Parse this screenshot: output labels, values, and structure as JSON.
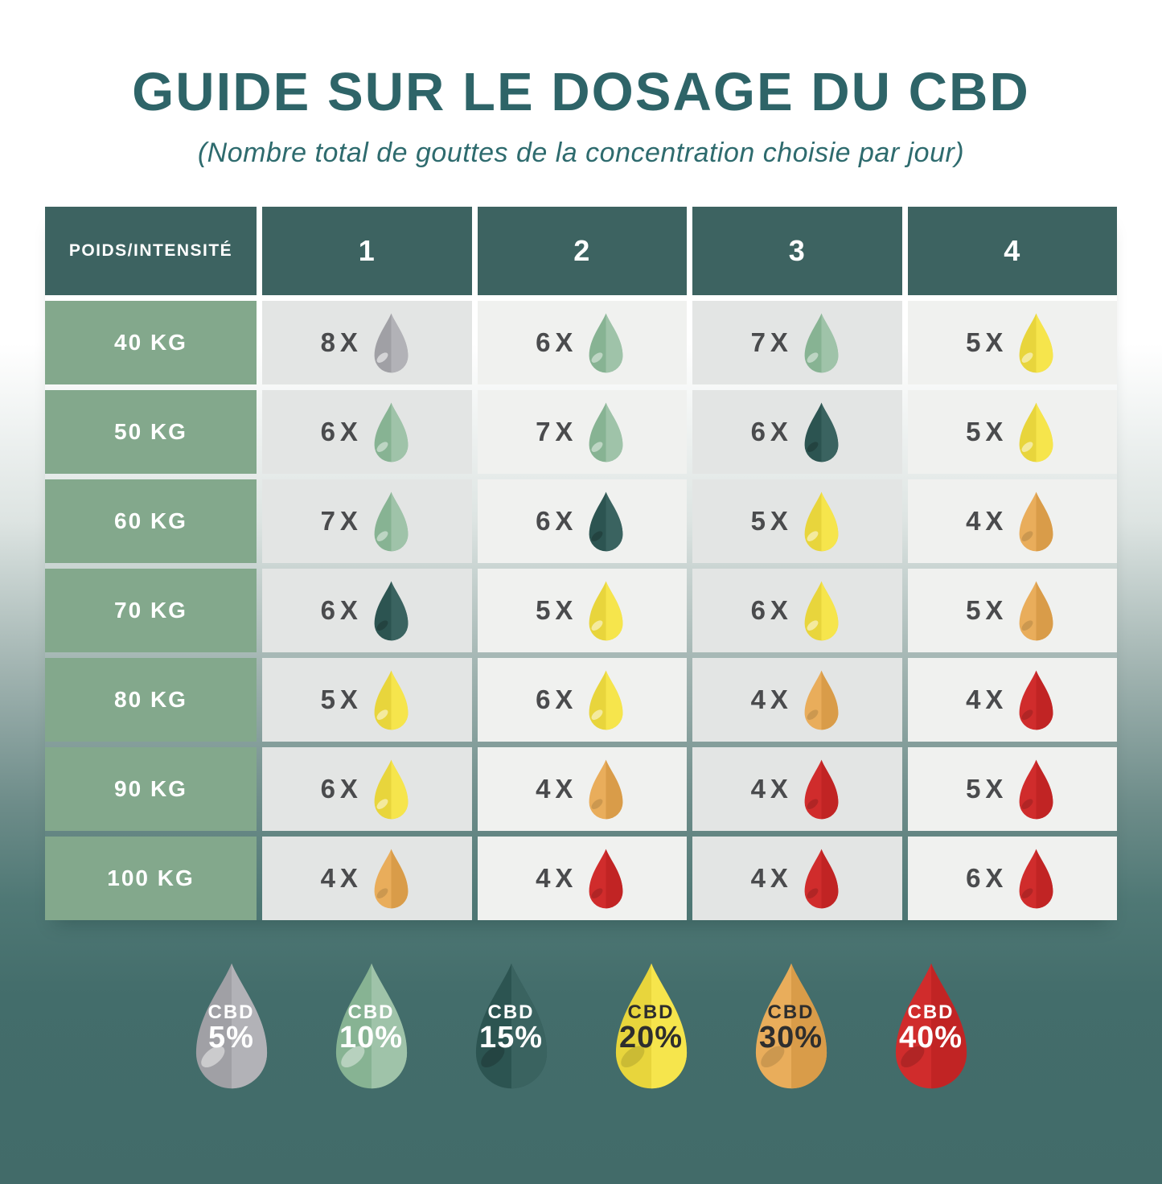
{
  "page": {
    "title": "GUIDE SUR LE DOSAGE DU CBD",
    "subtitle": "(Nombre total de gouttes de la concentration choisie par jour)"
  },
  "colors": {
    "title_text": "#2e6468",
    "subtitle_text": "#2e6b6e",
    "header_bg": "#3d6361",
    "header_text": "#ffffff",
    "row_label_bg": "#83a88c",
    "row_label_text": "#ffffff",
    "cell_bg_odd": "#e3e5e4",
    "cell_bg_even": "#f0f1ef",
    "count_text": "#4a4b4d",
    "bg_top": "#ffffff",
    "bg_bottom": "#426b69"
  },
  "concentrations": {
    "cbd5": {
      "name": "CBD 5%",
      "label_top": "CBD",
      "label_pct": "5%",
      "left": "#a0a0a5",
      "right": "#b2b2b7",
      "sheen_sm": "rgba(255,255,255,0.55)",
      "sheen_lg": "rgba(255,255,255,0.45)",
      "text": "#ffffff"
    },
    "cbd10": {
      "name": "CBD 10%",
      "label_top": "CBD",
      "label_pct": "10%",
      "left": "#87b393",
      "right": "#9fc3a9",
      "sheen_sm": "rgba(255,255,255,0.45)",
      "sheen_lg": "rgba(255,255,255,0.40)",
      "text": "#ffffff"
    },
    "cbd15": {
      "name": "CBD 15%",
      "label_top": "CBD",
      "label_pct": "15%",
      "left": "#2c5451",
      "right": "#3a6360",
      "sheen_sm": "rgba(0,0,0,0.20)",
      "sheen_lg": "rgba(0,0,0,0.18)",
      "text": "#ffffff"
    },
    "cbd20": {
      "name": "CBD 20%",
      "label_top": "CBD",
      "label_pct": "20%",
      "left": "#e8d53c",
      "right": "#f6e54c",
      "sheen_sm": "rgba(255,255,255,0.50)",
      "sheen_lg": "rgba(0,0,0,0.12)",
      "text": "#2e2e2e"
    },
    "cbd30": {
      "name": "CBD 30%",
      "label_top": "CBD",
      "label_pct": "30%",
      "left": "#e9ad5b",
      "right": "#d99c49",
      "sheen_sm": "rgba(0,0,0,0.12)",
      "sheen_lg": "rgba(0,0,0,0.12)",
      "text": "#2e2e2e"
    },
    "cbd40": {
      "name": "CBD 40%",
      "label_top": "CBD",
      "label_pct": "40%",
      "left": "#d02c2c",
      "right": "#c12424",
      "sheen_sm": "rgba(0,0,0,0.15)",
      "sheen_lg": "rgba(0,0,0,0.15)",
      "text": "#ffffff"
    }
  },
  "table": {
    "header": [
      "POIDS/INTENSITÉ",
      "1",
      "2",
      "3",
      "4"
    ],
    "rows": [
      {
        "label": "40 KG",
        "cells": [
          {
            "count": "8X",
            "drop": "cbd5"
          },
          {
            "count": "6X",
            "drop": "cbd10"
          },
          {
            "count": "7X",
            "drop": "cbd10"
          },
          {
            "count": "5X",
            "drop": "cbd20"
          }
        ]
      },
      {
        "label": "50 KG",
        "cells": [
          {
            "count": "6X",
            "drop": "cbd10"
          },
          {
            "count": "7X",
            "drop": "cbd10"
          },
          {
            "count": "6X",
            "drop": "cbd15"
          },
          {
            "count": "5X",
            "drop": "cbd20"
          }
        ]
      },
      {
        "label": "60 KG",
        "cells": [
          {
            "count": "7X",
            "drop": "cbd10"
          },
          {
            "count": "6X",
            "drop": "cbd15"
          },
          {
            "count": "5X",
            "drop": "cbd20"
          },
          {
            "count": "4X",
            "drop": "cbd30"
          }
        ]
      },
      {
        "label": "70 KG",
        "cells": [
          {
            "count": "6X",
            "drop": "cbd15"
          },
          {
            "count": "5X",
            "drop": "cbd20"
          },
          {
            "count": "6X",
            "drop": "cbd20"
          },
          {
            "count": "5X",
            "drop": "cbd30"
          }
        ]
      },
      {
        "label": "80 KG",
        "cells": [
          {
            "count": "5X",
            "drop": "cbd20"
          },
          {
            "count": "6X",
            "drop": "cbd20"
          },
          {
            "count": "4X",
            "drop": "cbd30"
          },
          {
            "count": "4X",
            "drop": "cbd40"
          }
        ]
      },
      {
        "label": "90 KG",
        "cells": [
          {
            "count": "6X",
            "drop": "cbd20"
          },
          {
            "count": "4X",
            "drop": "cbd30"
          },
          {
            "count": "4X",
            "drop": "cbd40"
          },
          {
            "count": "5X",
            "drop": "cbd40"
          }
        ]
      },
      {
        "label": "100 KG",
        "cells": [
          {
            "count": "4X",
            "drop": "cbd30"
          },
          {
            "count": "4X",
            "drop": "cbd40"
          },
          {
            "count": "4X",
            "drop": "cbd40"
          },
          {
            "count": "6X",
            "drop": "cbd40"
          }
        ]
      }
    ]
  },
  "legend": [
    "cbd5",
    "cbd10",
    "cbd15",
    "cbd20",
    "cbd30",
    "cbd40"
  ],
  "chart_data": {
    "type": "table",
    "title": "GUIDE SUR LE DOSAGE DU CBD",
    "subtitle": "(Nombre total de gouttes de la concentration choisie par jour)",
    "columns": [
      "POIDS/INTENSITÉ",
      "1",
      "2",
      "3",
      "4"
    ],
    "rows": [
      [
        "40 KG",
        "8X CBD 5%",
        "6X CBD 10%",
        "7X CBD 10%",
        "5X CBD 20%"
      ],
      [
        "50 KG",
        "6X CBD 10%",
        "7X CBD 10%",
        "6X CBD 15%",
        "5X CBD 20%"
      ],
      [
        "60 KG",
        "7X CBD 10%",
        "6X CBD 15%",
        "5X CBD 20%",
        "4X CBD 30%"
      ],
      [
        "70 KG",
        "6X CBD 15%",
        "5X CBD 20%",
        "6X CBD 20%",
        "5X CBD 30%"
      ],
      [
        "80 KG",
        "5X CBD 20%",
        "6X CBD 20%",
        "4X CBD 30%",
        "4X CBD 40%"
      ],
      [
        "90 KG",
        "6X CBD 20%",
        "4X CBD 30%",
        "4X CBD 40%",
        "5X CBD 40%"
      ],
      [
        "100 KG",
        "4X CBD 30%",
        "4X CBD 40%",
        "4X CBD 40%",
        "6X CBD 40%"
      ]
    ],
    "legend": [
      "CBD 5%",
      "CBD 10%",
      "CBD 15%",
      "CBD 20%",
      "CBD 30%",
      "CBD 40%"
    ],
    "legend_position": "bottom"
  }
}
